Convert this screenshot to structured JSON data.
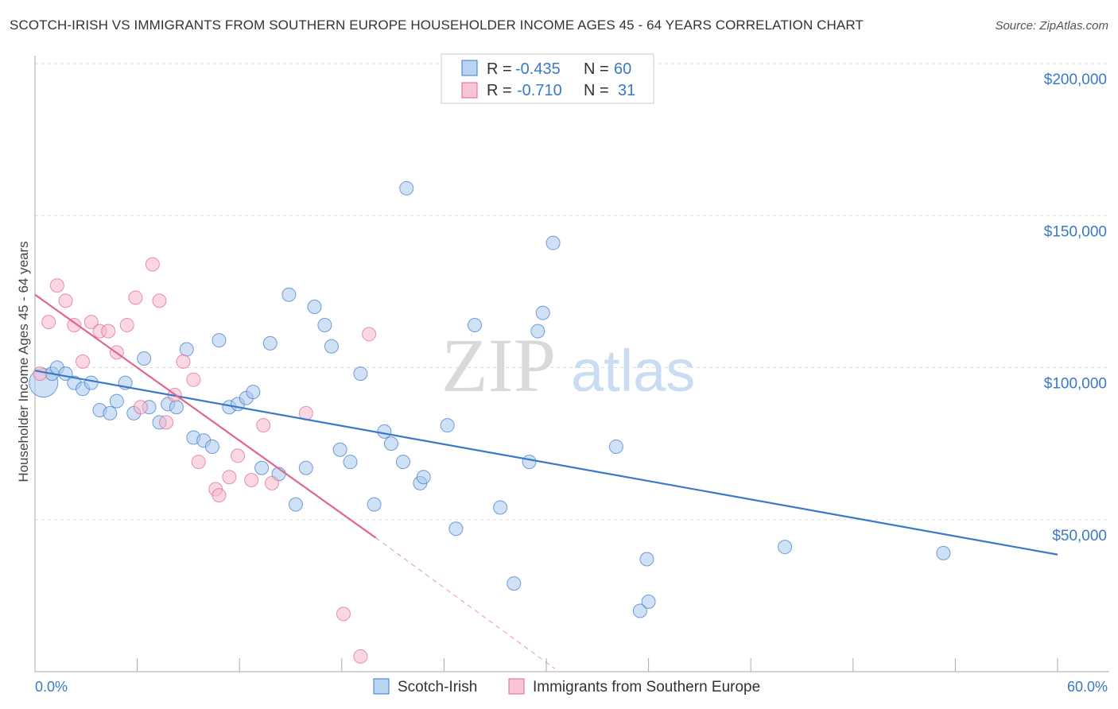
{
  "title": "SCOTCH-IRISH VS IMMIGRANTS FROM SOUTHERN EUROPE HOUSEHOLDER INCOME AGES 45 - 64 YEARS CORRELATION CHART",
  "source": "Source: ZipAtlas.com",
  "watermark": {
    "zip": "ZIP",
    "atlas": "atlas"
  },
  "colors": {
    "blue": "#3a78c8",
    "blue_fill": "#a9c8ee",
    "pink": "#e0668f",
    "pink_fill": "#f5b7cb",
    "grid": "#dddddd"
  },
  "legend": {
    "rows": [
      {
        "r_label": "R =",
        "r_value": "-0.435",
        "n_label": "N =",
        "n_value": "60"
      },
      {
        "r_label": "R =",
        "r_value": "-0.710",
        "n_label": "N =",
        "n_value": "31"
      }
    ]
  },
  "bottom_legend": [
    "Scotch-Irish",
    "Immigrants from Southern Europe"
  ],
  "chart_data": {
    "type": "scatter",
    "title": "SCOTCH-IRISH VS IMMIGRANTS FROM SOUTHERN EUROPE HOUSEHOLDER INCOME AGES 45 - 64 YEARS CORRELATION CHART",
    "ylabel": "Householder Income Ages 45 - 64 years",
    "xlabel": "",
    "xlim": [
      0,
      60
    ],
    "ylim": [
      0,
      200000
    ],
    "x_tick_labels": [
      "0.0%",
      "60.0%"
    ],
    "y_tick_labels": [
      "$50,000",
      "$100,000",
      "$150,000",
      "$200,000"
    ],
    "y_ticks": [
      50000,
      100000,
      150000,
      200000
    ],
    "grid": true,
    "series": [
      {
        "name": "Scotch-Irish",
        "color": "#3a78c8",
        "points": [
          [
            0.5,
            95000
          ],
          [
            1.0,
            98000
          ],
          [
            1.3,
            100000
          ],
          [
            1.8,
            98000
          ],
          [
            2.3,
            95000
          ],
          [
            2.8,
            93000
          ],
          [
            3.3,
            95000
          ],
          [
            3.8,
            86000
          ],
          [
            4.4,
            85000
          ],
          [
            4.8,
            89000
          ],
          [
            5.3,
            95000
          ],
          [
            5.8,
            85000
          ],
          [
            6.4,
            103000
          ],
          [
            6.7,
            87000
          ],
          [
            7.3,
            82000
          ],
          [
            7.8,
            88000
          ],
          [
            8.3,
            87000
          ],
          [
            8.9,
            106000
          ],
          [
            9.3,
            77000
          ],
          [
            9.9,
            76000
          ],
          [
            10.4,
            74000
          ],
          [
            10.8,
            109000
          ],
          [
            11.4,
            87000
          ],
          [
            11.9,
            88000
          ],
          [
            12.4,
            90000
          ],
          [
            12.8,
            92000
          ],
          [
            13.3,
            67000
          ],
          [
            13.8,
            108000
          ],
          [
            14.3,
            65000
          ],
          [
            14.9,
            124000
          ],
          [
            15.3,
            55000
          ],
          [
            15.9,
            67000
          ],
          [
            16.4,
            120000
          ],
          [
            17.0,
            114000
          ],
          [
            17.4,
            107000
          ],
          [
            17.9,
            73000
          ],
          [
            18.5,
            69000
          ],
          [
            19.1,
            98000
          ],
          [
            19.9,
            55000
          ],
          [
            20.5,
            79000
          ],
          [
            20.9,
            75000
          ],
          [
            21.6,
            69000
          ],
          [
            21.8,
            159000
          ],
          [
            22.6,
            62000
          ],
          [
            22.8,
            64000
          ],
          [
            24.2,
            81000
          ],
          [
            24.7,
            47000
          ],
          [
            25.8,
            114000
          ],
          [
            27.3,
            54000
          ],
          [
            28.1,
            29000
          ],
          [
            29.0,
            69000
          ],
          [
            29.5,
            112000
          ],
          [
            29.8,
            118000
          ],
          [
            30.4,
            141000
          ],
          [
            34.1,
            74000
          ],
          [
            35.5,
            20000
          ],
          [
            35.9,
            37000
          ],
          [
            36.0,
            23000
          ],
          [
            44.0,
            41000
          ],
          [
            53.3,
            39000
          ]
        ]
      },
      {
        "name": "Immigrants from Southern Europe",
        "color": "#e0668f",
        "points": [
          [
            0.3,
            98000
          ],
          [
            0.8,
            115000
          ],
          [
            1.3,
            127000
          ],
          [
            1.8,
            122000
          ],
          [
            2.3,
            114000
          ],
          [
            2.8,
            102000
          ],
          [
            3.3,
            115000
          ],
          [
            3.8,
            112000
          ],
          [
            4.3,
            112000
          ],
          [
            4.8,
            105000
          ],
          [
            5.4,
            114000
          ],
          [
            5.9,
            123000
          ],
          [
            6.2,
            87000
          ],
          [
            6.9,
            134000
          ],
          [
            7.3,
            122000
          ],
          [
            7.7,
            82000
          ],
          [
            8.2,
            91000
          ],
          [
            8.7,
            102000
          ],
          [
            9.3,
            96000
          ],
          [
            9.6,
            69000
          ],
          [
            10.6,
            60000
          ],
          [
            10.8,
            58000
          ],
          [
            11.4,
            64000
          ],
          [
            11.9,
            71000
          ],
          [
            12.7,
            63000
          ],
          [
            13.4,
            81000
          ],
          [
            13.9,
            62000
          ],
          [
            15.9,
            85000
          ],
          [
            18.1,
            19000
          ],
          [
            19.1,
            5000
          ],
          [
            19.6,
            111000
          ]
        ]
      }
    ],
    "trend_lines": [
      {
        "series": "Scotch-Irish",
        "x": [
          0,
          60
        ],
        "y": [
          99000,
          38500
        ]
      },
      {
        "series": "Immigrants from Southern Europe",
        "x": [
          0,
          20
        ],
        "y": [
          124000,
          44000
        ],
        "dashed_extension_to": [
          30.5,
          1000
        ]
      }
    ]
  }
}
